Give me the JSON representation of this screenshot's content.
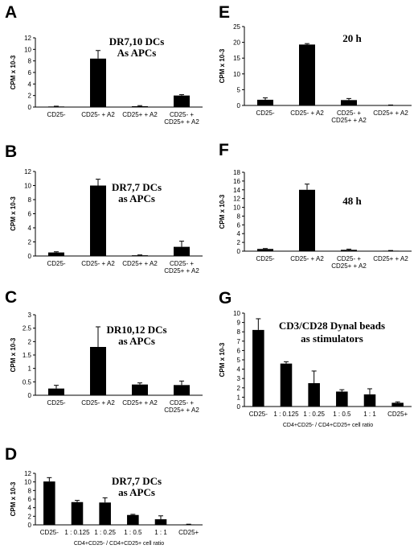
{
  "chart_data": [
    {
      "panel": "A",
      "type": "bar",
      "annotation": [
        "DR7,10 DCs",
        "As APCs"
      ],
      "ylabel": "CPM x 10-3",
      "ylim": [
        0,
        12
      ],
      "yticks": [
        0,
        2,
        4,
        6,
        8,
        10,
        12
      ],
      "categories": [
        [
          "CD25-"
        ],
        [
          "CD25- + A2"
        ],
        [
          "CD25+ + A2"
        ],
        [
          "CD25- +",
          "CD25+ + A2"
        ]
      ],
      "values": [
        0.1,
        8.4,
        0.15,
        2.0
      ],
      "errors": [
        0.05,
        1.4,
        0.1,
        0.15
      ],
      "xlabel": ""
    },
    {
      "panel": "B",
      "type": "bar",
      "annotation": [
        "DR7,7 DCs",
        "as APCs"
      ],
      "ylabel": "CPM x 10-3",
      "ylim": [
        0,
        12
      ],
      "yticks": [
        0,
        2,
        4,
        6,
        8,
        10,
        12
      ],
      "categories": [
        [
          "CD25-"
        ],
        [
          "CD25- + A2"
        ],
        [
          "CD25+ + A2"
        ],
        [
          "CD25- +",
          "CD25+ + A2"
        ]
      ],
      "values": [
        0.5,
        10.0,
        0.1,
        1.3
      ],
      "errors": [
        0.1,
        0.9,
        0.05,
        0.8
      ],
      "xlabel": ""
    },
    {
      "panel": "C",
      "type": "bar",
      "annotation": [
        "DR10,12 DCs",
        "as APCs"
      ],
      "ylabel": "CPM x 10-3",
      "ylim": [
        0,
        3
      ],
      "yticks": [
        0,
        0.5,
        1,
        1.5,
        2,
        2.5,
        3
      ],
      "categories": [
        [
          "CD25-"
        ],
        [
          "CD25- + A2"
        ],
        [
          "CD25+ + A2"
        ],
        [
          "CD25- +",
          "CD25+ + A2"
        ]
      ],
      "values": [
        0.25,
        1.8,
        0.4,
        0.38
      ],
      "errors": [
        0.12,
        0.75,
        0.06,
        0.15
      ],
      "xlabel": ""
    },
    {
      "panel": "D",
      "type": "bar",
      "annotation": [
        "DR7,7 DCs",
        "as APCs"
      ],
      "ylabel": "CPM x 10-3",
      "ylim": [
        0,
        12
      ],
      "yticks": [
        0,
        2,
        4,
        6,
        8,
        10,
        12
      ],
      "categories": [
        [
          "CD25-"
        ],
        [
          "1 : 0.125"
        ],
        [
          "1 : 0.25"
        ],
        [
          "1 : 0.5"
        ],
        [
          "1 : 1"
        ],
        [
          "CD25+"
        ]
      ],
      "values": [
        10.1,
        5.3,
        5.2,
        2.3,
        1.3,
        0.1
      ],
      "errors": [
        0.9,
        0.4,
        1.1,
        0.15,
        0.8,
        0.05
      ],
      "xlabel": "CD4+CD25- / CD4+CD25+ cell ratio"
    },
    {
      "panel": "E",
      "type": "bar",
      "annotation": [
        "20 h"
      ],
      "ylabel": "CPM x 10-3",
      "ylim": [
        0,
        25
      ],
      "yticks": [
        0,
        5,
        10,
        15,
        20,
        25
      ],
      "categories": [
        [
          "CD25-"
        ],
        [
          "CD25- + A2"
        ],
        [
          "CD25- +",
          "CD25+ + A2"
        ],
        [
          "CD25+ + A2"
        ]
      ],
      "values": [
        1.8,
        19.3,
        1.7,
        0.1
      ],
      "errors": [
        0.6,
        0.3,
        0.5,
        0.05
      ],
      "xlabel": ""
    },
    {
      "panel": "F",
      "type": "bar",
      "annotation": [
        "48 h"
      ],
      "ylabel": "CPM x 10-3",
      "ylim": [
        0,
        18
      ],
      "yticks": [
        0,
        2,
        4,
        6,
        8,
        10,
        12,
        14,
        16,
        18
      ],
      "categories": [
        [
          "CD25-"
        ],
        [
          "CD25- + A2"
        ],
        [
          "CD25- +",
          "CD25+ + A2"
        ],
        [
          "CD25+ + A2"
        ]
      ],
      "values": [
        0.5,
        14.0,
        0.3,
        0.1
      ],
      "errors": [
        0.1,
        1.3,
        0.15,
        0.05
      ],
      "xlabel": ""
    },
    {
      "panel": "G",
      "type": "bar",
      "annotation": [
        "CD3/CD28 Dynal beads",
        "as stimulators"
      ],
      "ylabel": "CPM x 10-3",
      "ylim": [
        0,
        10
      ],
      "yticks": [
        0,
        1,
        2,
        3,
        4,
        5,
        6,
        7,
        8,
        9,
        10
      ],
      "categories": [
        [
          "CD25-"
        ],
        [
          "1 : 0.125"
        ],
        [
          "1 : 0.25"
        ],
        [
          "1 : 0.5"
        ],
        [
          "1 : 1"
        ],
        [
          "CD25+"
        ]
      ],
      "values": [
        8.2,
        4.6,
        2.5,
        1.6,
        1.3,
        0.4
      ],
      "errors": [
        1.2,
        0.2,
        1.3,
        0.2,
        0.6,
        0.1
      ],
      "xlabel": "CD4+CD25- / CD4+CD25+ cell ratio"
    }
  ]
}
